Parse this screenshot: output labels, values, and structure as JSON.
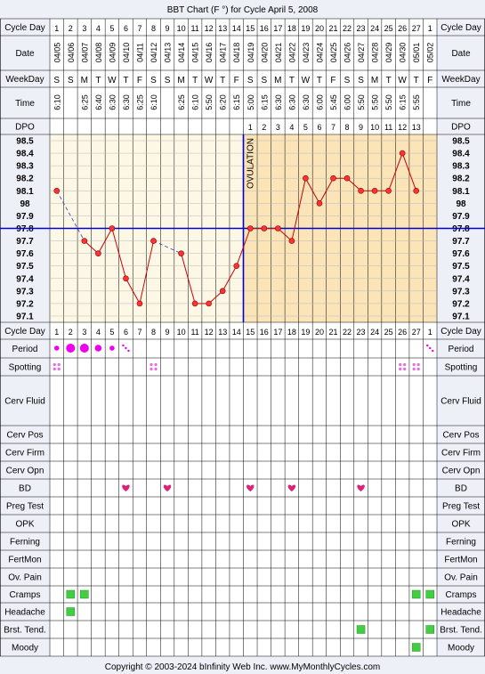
{
  "title": "BBT Chart (F °) for Cycle April 5, 2008",
  "row_labels": {
    "cycle_day": "Cycle Day",
    "date": "Date",
    "weekday": "WeekDay",
    "time": "Time",
    "dpo": "DPO",
    "period": "Period",
    "spotting": "Spotting",
    "cerv_fluid": "Cerv Fluid",
    "cerv_pos": "Cerv Pos",
    "cerv_firm": "Cerv Firm",
    "cerv_opn": "Cerv Opn",
    "bd": "BD",
    "preg_test": "Preg Test",
    "opk": "OPK",
    "ferning": "Ferning",
    "fertmon": "FertMon",
    "ov_pain": "Ov. Pain",
    "cramps": "Cramps",
    "headache": "Headache",
    "brst_tend": "Brst. Tend.",
    "moody": "Moody"
  },
  "days": [
    "1",
    "2",
    "3",
    "4",
    "5",
    "6",
    "7",
    "8",
    "9",
    "10",
    "11",
    "12",
    "13",
    "14",
    "15",
    "16",
    "17",
    "18",
    "19",
    "20",
    "21",
    "22",
    "23",
    "24",
    "25",
    "26",
    "27",
    "1"
  ],
  "dates": [
    "04/05",
    "04/06",
    "04/07",
    "04/08",
    "04/09",
    "04/10",
    "04/11",
    "04/12",
    "04/13",
    "04/14",
    "04/15",
    "04/16",
    "04/17",
    "04/18",
    "04/19",
    "04/20",
    "04/21",
    "04/22",
    "04/23",
    "04/24",
    "04/25",
    "04/26",
    "04/27",
    "04/28",
    "04/29",
    "04/30",
    "05/01",
    "05/02"
  ],
  "weekdays": [
    "S",
    "S",
    "M",
    "T",
    "W",
    "T",
    "F",
    "S",
    "S",
    "M",
    "T",
    "W",
    "T",
    "F",
    "S",
    "S",
    "M",
    "T",
    "W",
    "T",
    "F",
    "S",
    "S",
    "M",
    "T",
    "W",
    "T",
    "F"
  ],
  "times": [
    "6:10",
    "",
    "6:25",
    "6:40",
    "6:30",
    "6:30",
    "6:25",
    "6:10",
    "",
    "6:25",
    "6:10",
    "5:50",
    "6:20",
    "6:15",
    "5:00",
    "6:15",
    "6:30",
    "6:30",
    "6:30",
    "6:00",
    "5:45",
    "6:00",
    "5:50",
    "5:50",
    "5:50",
    "6:15",
    "5:55",
    ""
  ],
  "dpo": [
    "",
    "",
    "",
    "",
    "",
    "",
    "",
    "",
    "",
    "",
    "",
    "",
    "",
    "",
    "1",
    "2",
    "3",
    "4",
    "5",
    "6",
    "7",
    "8",
    "9",
    "10",
    "11",
    "12",
    "13",
    ""
  ],
  "ovulation_label": "OVULATION",
  "ovulation_after_day_index": 13,
  "coverline_temp": 97.8,
  "chart_data": {
    "type": "line",
    "x_label": "Cycle Day",
    "y_ticks": [
      98.5,
      98.4,
      98.3,
      98.2,
      98.1,
      98.0,
      97.9,
      97.8,
      97.7,
      97.6,
      97.5,
      97.4,
      97.3,
      97.2,
      97.1
    ],
    "ylim": [
      97.1,
      98.5
    ],
    "temps": [
      98.1,
      null,
      97.7,
      97.6,
      97.8,
      97.4,
      97.2,
      97.7,
      null,
      97.6,
      97.2,
      97.2,
      97.3,
      97.5,
      97.8,
      97.8,
      97.8,
      97.7,
      98.2,
      98.0,
      98.2,
      98.2,
      98.1,
      98.1,
      98.1,
      98.4,
      98.1,
      null
    ]
  },
  "period": [
    "small",
    "large",
    "large",
    "medium",
    "small",
    "spot",
    "",
    "",
    "",
    "",
    "",
    "",
    "",
    "",
    "",
    "",
    "",
    "",
    "",
    "",
    "",
    "",
    "",
    "",
    "",
    "",
    "",
    "spot"
  ],
  "spotting": [
    true,
    false,
    false,
    false,
    false,
    false,
    false,
    true,
    false,
    false,
    false,
    false,
    false,
    false,
    false,
    false,
    false,
    false,
    false,
    false,
    false,
    false,
    false,
    false,
    false,
    true,
    true,
    false
  ],
  "bd_days": [
    6,
    9,
    15,
    18,
    23
  ],
  "cramps_days": [
    2,
    3,
    27,
    28
  ],
  "headache_days": [
    2
  ],
  "brst_tend_days": [
    23,
    28
  ],
  "moody_days": [
    27
  ],
  "colors": {
    "background": "#eef0f8",
    "pre_ovulation_fill": "#fdf8e6",
    "post_ovulation_fill": "#fbe4b8",
    "line": "#cc0000",
    "point_fill": "#ff3333",
    "coverline": "#0000cc",
    "period": "#ee00ee",
    "spotting": "#ee66ee",
    "bd_heart": "#dd2277",
    "symptom_box": "#44cc44"
  },
  "footer": "Copyright © 2003-2024 bInfinity Web Inc.    www.MyMonthlyCycles.com"
}
